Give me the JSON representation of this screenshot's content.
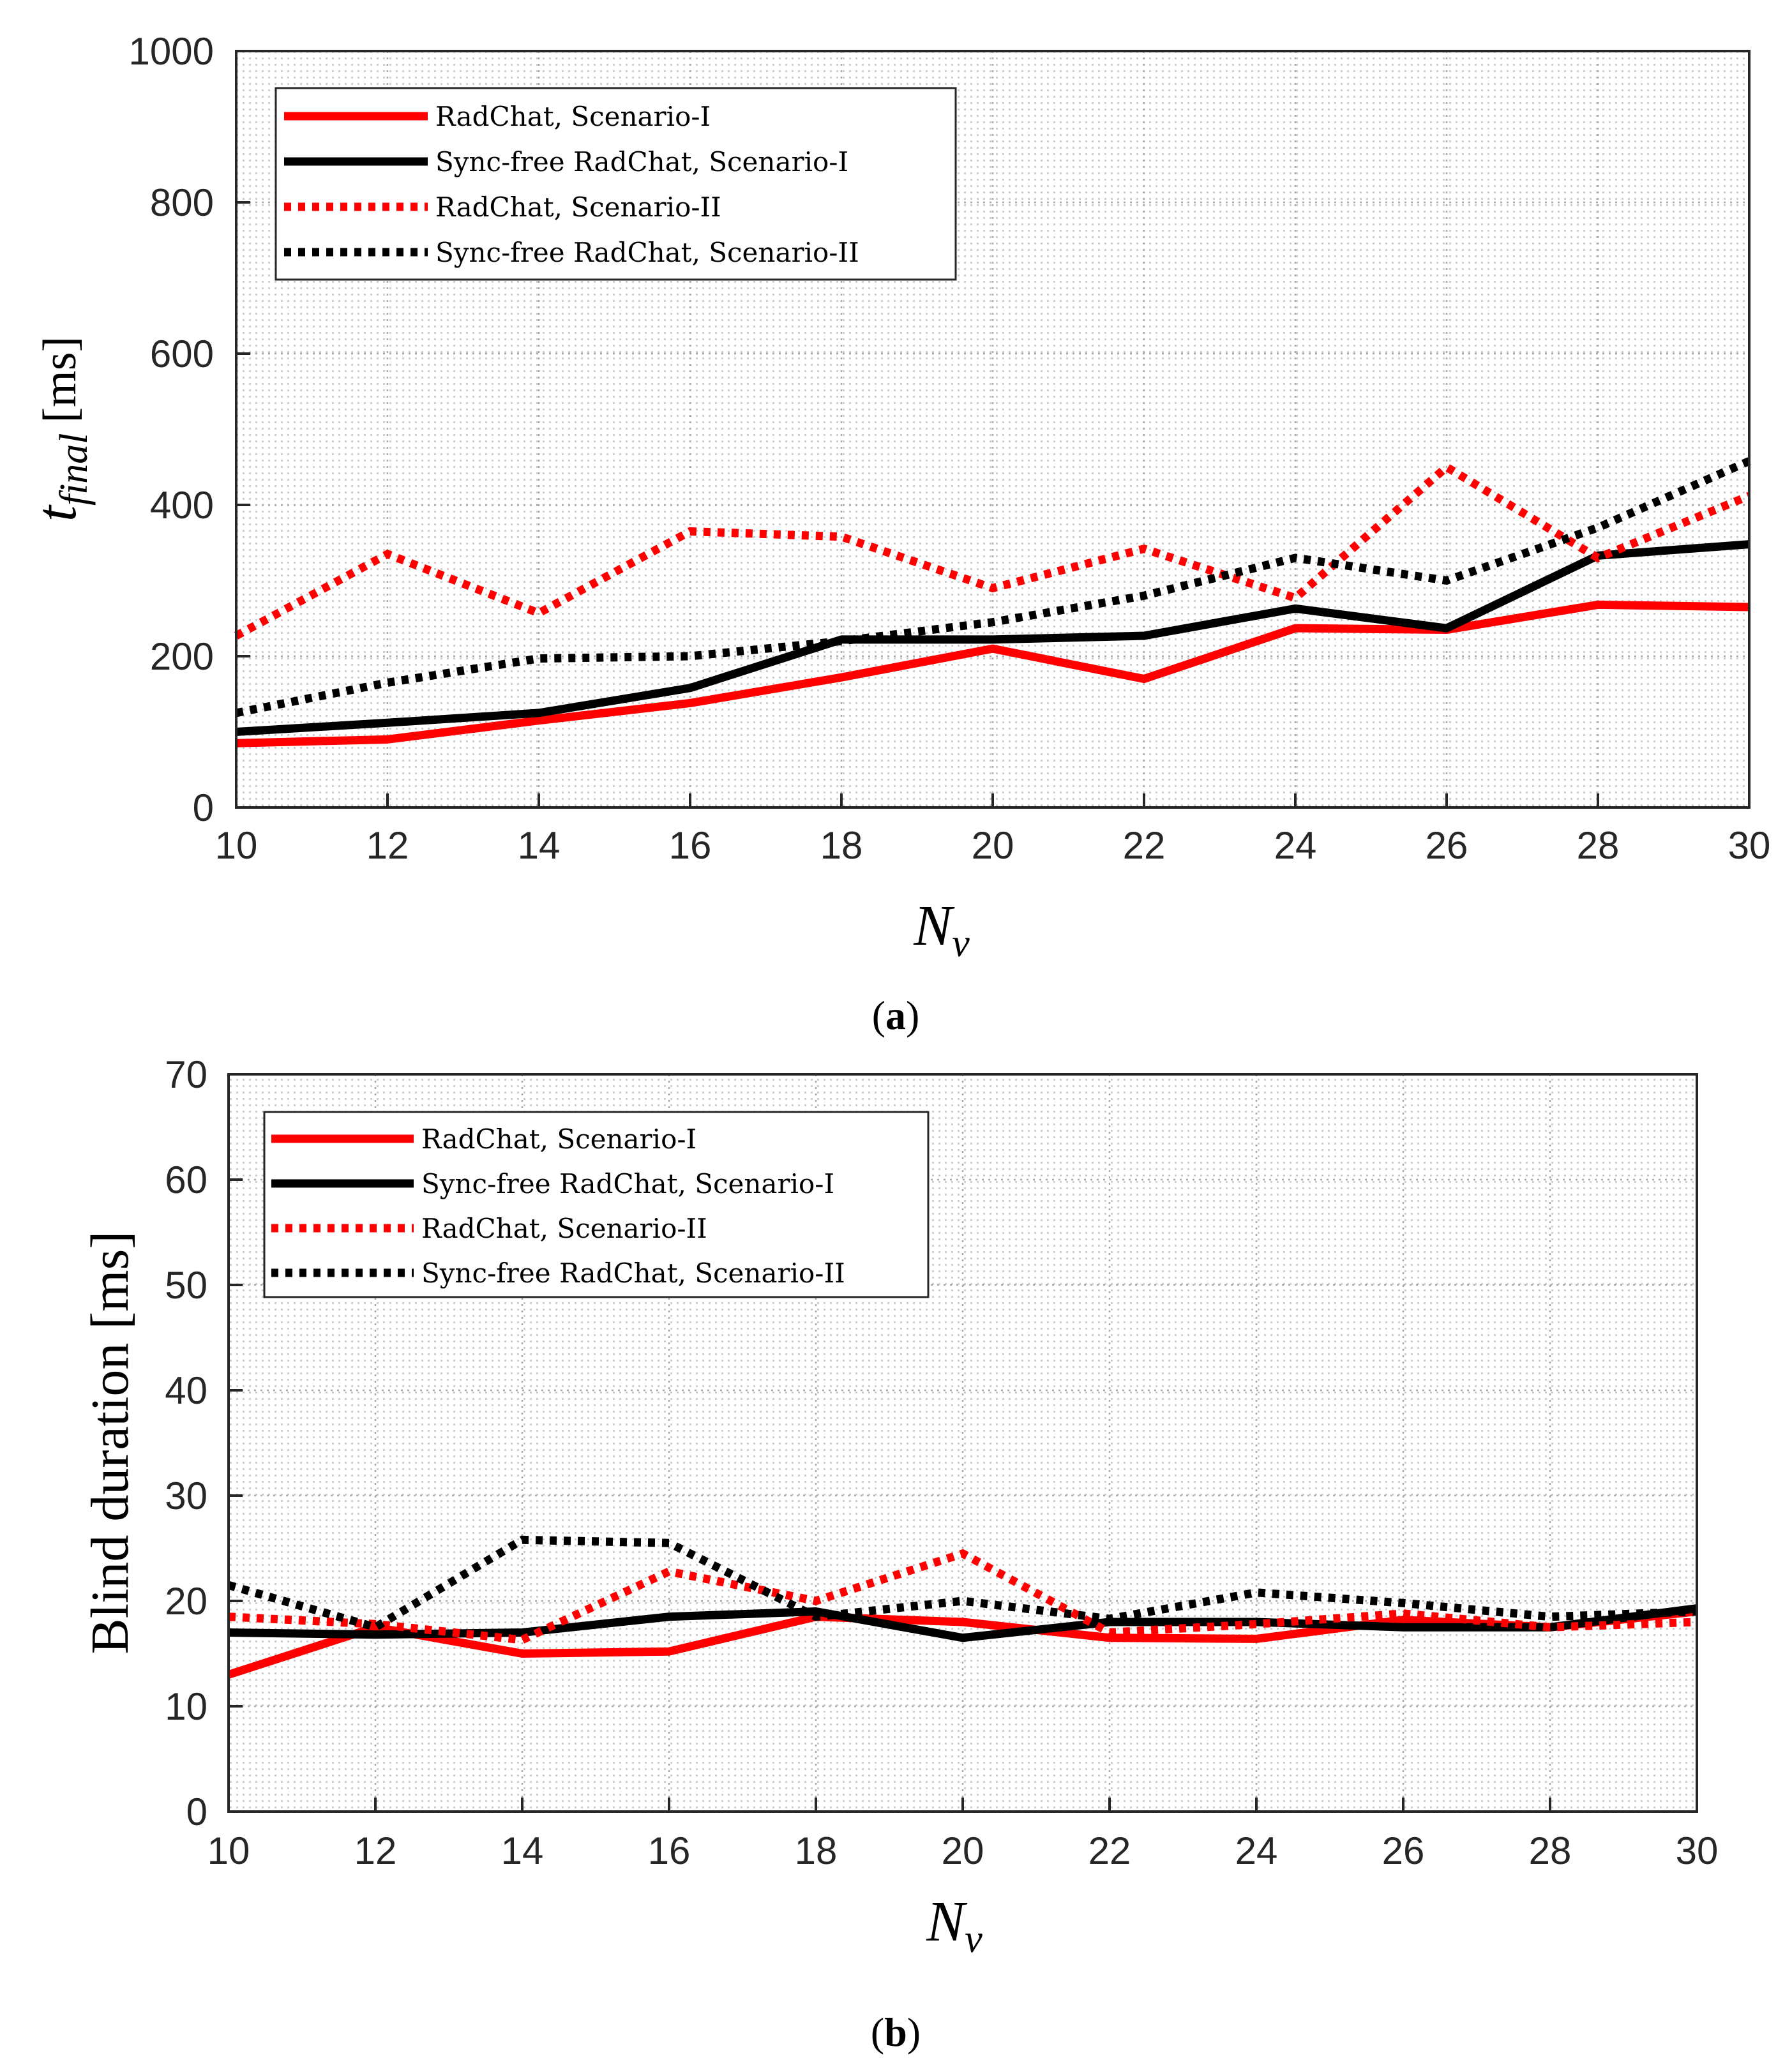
{
  "chart_data": [
    {
      "type": "line",
      "caption_bold": "a",
      "xlabel_main": "N",
      "xlabel_sub": "v",
      "ylabel_main": "t",
      "ylabel_sub": "final",
      "ylabel_unit": "[ms]",
      "x": [
        10,
        12,
        14,
        16,
        18,
        20,
        22,
        24,
        26,
        28,
        30
      ],
      "xlim": [
        10,
        30
      ],
      "ylim": [
        0,
        1000
      ],
      "xticks": [
        10,
        12,
        14,
        16,
        18,
        20,
        22,
        24,
        26,
        28,
        30
      ],
      "yticks": [
        0,
        200,
        400,
        600,
        800,
        1000
      ],
      "legend_position": "top-left",
      "grid": "minor dotted",
      "series": [
        {
          "name": "RadChat, Scenario-I",
          "color": "#ff0000",
          "style": "solid",
          "values": [
            85,
            90,
            115,
            138,
            172,
            210,
            170,
            237,
            235,
            268,
            265
          ]
        },
        {
          "name": "Sync-free RadChat, Scenario-I",
          "color": "#000000",
          "style": "solid",
          "values": [
            100,
            112,
            125,
            158,
            222,
            222,
            227,
            263,
            237,
            333,
            348
          ]
        },
        {
          "name": "RadChat, Scenario-II",
          "color": "#ff0000",
          "style": "dotted",
          "values": [
            227,
            335,
            257,
            365,
            358,
            290,
            342,
            277,
            450,
            330,
            412
          ]
        },
        {
          "name": "Sync-free RadChat, Scenario-II",
          "color": "#000000",
          "style": "dotted",
          "values": [
            125,
            165,
            197,
            200,
            220,
            245,
            280,
            330,
            300,
            370,
            458
          ]
        }
      ]
    },
    {
      "type": "line",
      "caption_bold": "b",
      "xlabel_main": "N",
      "xlabel_sub": "v",
      "ylabel": "Blind duration [ms]",
      "x": [
        10,
        12,
        14,
        16,
        18,
        20,
        22,
        24,
        26,
        28,
        30
      ],
      "xlim": [
        10,
        30
      ],
      "ylim": [
        0,
        70
      ],
      "xticks": [
        10,
        12,
        14,
        16,
        18,
        20,
        22,
        24,
        26,
        28,
        30
      ],
      "yticks": [
        0,
        10,
        20,
        30,
        40,
        50,
        60,
        70
      ],
      "legend_position": "top-left",
      "grid": "minor dotted",
      "series": [
        {
          "name": "RadChat, Scenario-I",
          "color": "#ff0000",
          "style": "solid",
          "values": [
            13,
            17.5,
            15,
            15.2,
            18.5,
            18,
            16.5,
            16.4,
            18.2,
            17.5,
            19
          ]
        },
        {
          "name": "Sync-free RadChat, Scenario-I",
          "color": "#000000",
          "style": "solid",
          "values": [
            17,
            16.8,
            17,
            18.5,
            19,
            16.5,
            18,
            18,
            17.5,
            17.5,
            19.3
          ]
        },
        {
          "name": "RadChat, Scenario-II",
          "color": "#ff0000",
          "style": "dotted",
          "values": [
            18.5,
            17.8,
            16.3,
            22.8,
            20,
            24.5,
            17,
            17.8,
            18.8,
            17.5,
            18
          ]
        },
        {
          "name": "Sync-free RadChat, Scenario-II",
          "color": "#000000",
          "style": "dotted",
          "values": [
            21.5,
            17.5,
            25.8,
            25.5,
            18.5,
            20,
            18.3,
            20.8,
            19.8,
            18.5,
            19
          ]
        }
      ]
    }
  ]
}
